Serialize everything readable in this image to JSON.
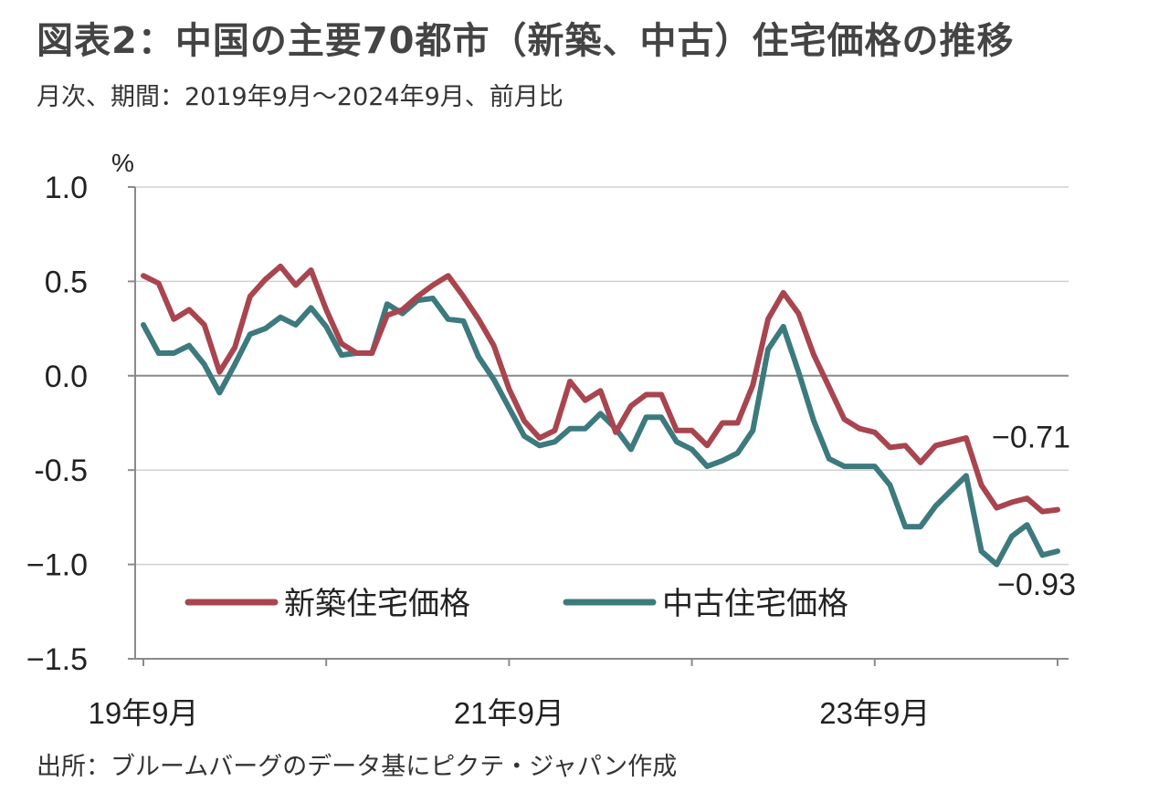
{
  "header": {
    "title": "図表2：中国の主要70都市（新築、中古）住宅価格の推移",
    "subtitle": "月次、期間：2019年9月～2024年9月、前月比"
  },
  "footer": {
    "source": "出所：ブルームバーグのデータ基にピクテ・ジャパン作成"
  },
  "chart_data": {
    "type": "line",
    "unit_label": "%",
    "ylim": [
      -1.5,
      1.0
    ],
    "yticks": [
      1.0,
      0.5,
      0.0,
      -0.5,
      -1.0,
      -1.5
    ],
    "ytick_labels": [
      "1.0",
      "0.5",
      "0.0",
      "-0.5",
      "−1.0",
      "−1.5"
    ],
    "xticks": [
      {
        "index": 0,
        "label": "19年9月"
      },
      {
        "index": 24,
        "label": "21年9月"
      },
      {
        "index": 48,
        "label": "23年9月"
      }
    ],
    "n_points": 61,
    "grid": true,
    "legend_position": "bottom-left",
    "series": [
      {
        "name": "新築住宅価格",
        "color": "#a8454f",
        "values": [
          0.53,
          0.49,
          0.3,
          0.35,
          0.27,
          0.02,
          0.15,
          0.42,
          0.51,
          0.58,
          0.48,
          0.56,
          0.35,
          0.17,
          0.12,
          0.12,
          0.32,
          0.35,
          0.42,
          0.48,
          0.53,
          0.42,
          0.3,
          0.16,
          -0.07,
          -0.24,
          -0.33,
          -0.29,
          -0.03,
          -0.13,
          -0.08,
          -0.3,
          -0.16,
          -0.1,
          -0.1,
          -0.29,
          -0.29,
          -0.37,
          -0.25,
          -0.25,
          -0.05,
          0.3,
          0.44,
          0.33,
          0.11,
          -0.06,
          -0.23,
          -0.28,
          -0.3,
          -0.38,
          -0.37,
          -0.46,
          -0.37,
          -0.35,
          -0.33,
          -0.58,
          -0.7,
          -0.67,
          -0.65,
          -0.72,
          -0.71
        ]
      },
      {
        "name": "中古住宅価格",
        "color": "#3c7a7d",
        "values": [
          0.27,
          0.12,
          0.12,
          0.16,
          0.06,
          -0.09,
          0.06,
          0.22,
          0.25,
          0.31,
          0.27,
          0.36,
          0.26,
          0.11,
          0.12,
          0.12,
          0.38,
          0.33,
          0.4,
          0.41,
          0.3,
          0.29,
          0.1,
          -0.02,
          -0.17,
          -0.32,
          -0.37,
          -0.35,
          -0.28,
          -0.28,
          -0.2,
          -0.28,
          -0.39,
          -0.22,
          -0.22,
          -0.35,
          -0.39,
          -0.48,
          -0.45,
          -0.41,
          -0.29,
          0.14,
          0.26,
          0.02,
          -0.24,
          -0.44,
          -0.48,
          -0.48,
          -0.48,
          -0.58,
          -0.8,
          -0.8,
          -0.69,
          -0.61,
          -0.53,
          -0.93,
          -1.0,
          -0.85,
          -0.79,
          -0.95,
          -0.93
        ]
      }
    ],
    "annotations": [
      {
        "series": 0,
        "label": "−0.71"
      },
      {
        "series": 1,
        "label": "−0.93"
      }
    ]
  }
}
